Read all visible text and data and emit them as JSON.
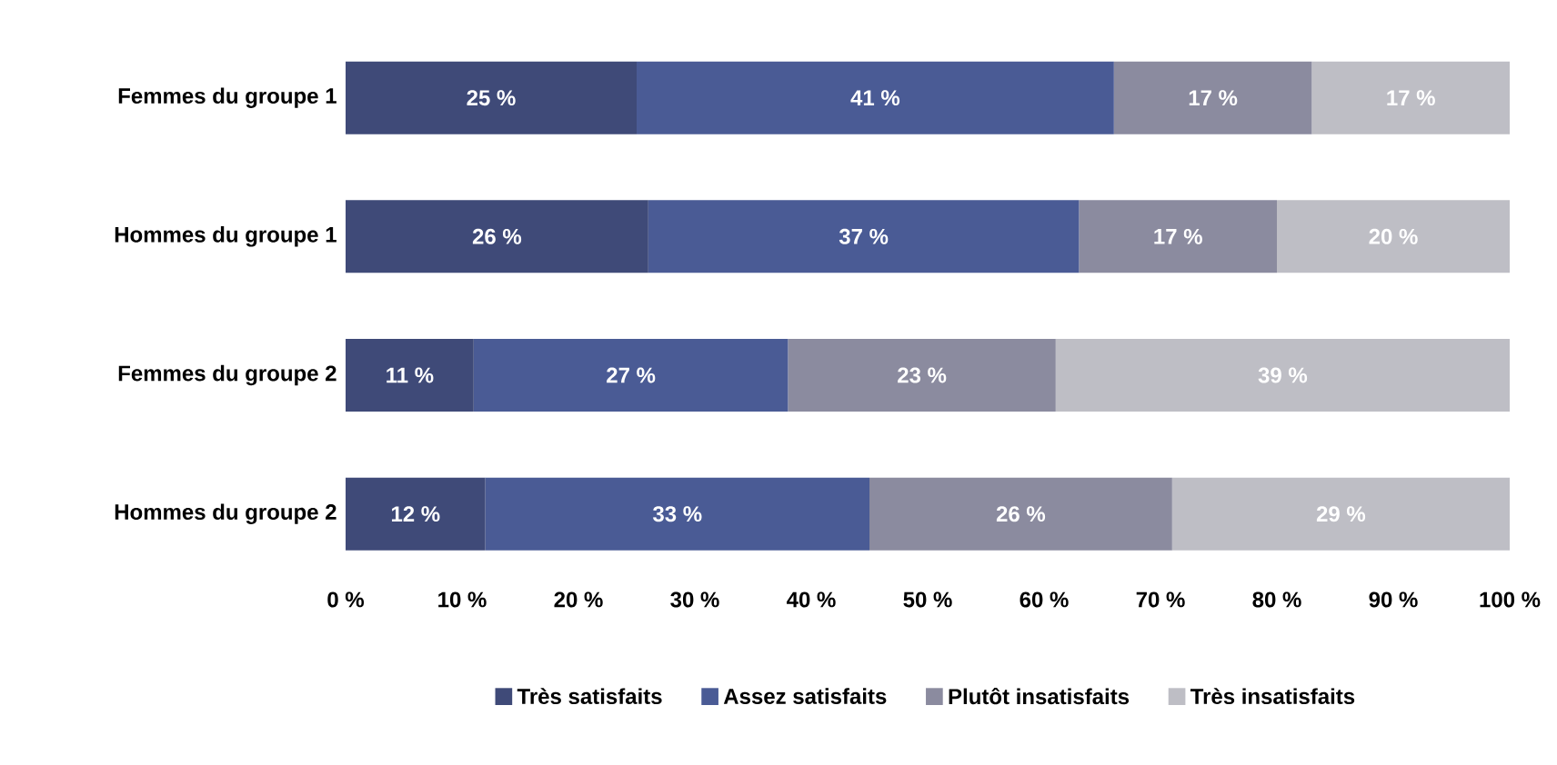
{
  "chart_data": {
    "type": "bar",
    "orientation": "horizontal",
    "stacked": true,
    "categories": [
      "Femmes du groupe 1",
      "Hommes du groupe 1",
      "Femmes du groupe 2",
      "Hommes du groupe 2"
    ],
    "series": [
      {
        "name": "Très satisfaits",
        "color": "#3f4a78",
        "values": [
          25,
          26,
          11,
          12
        ],
        "value_labels": [
          "25 %",
          "26 %",
          "11 %",
          "12 %"
        ]
      },
      {
        "name": "Assez satisfaits",
        "color": "#4a5b95",
        "values": [
          41,
          37,
          27,
          33
        ],
        "value_labels": [
          "41 %",
          "37 %",
          "27 %",
          "33 %"
        ]
      },
      {
        "name": "Plutôt insatisfaits",
        "color": "#8b8b9f",
        "values": [
          17,
          17,
          23,
          26
        ],
        "value_labels": [
          "17 %",
          "17 %",
          "23 %",
          "26 %"
        ]
      },
      {
        "name": "Très insatisfaits",
        "color": "#bebec5",
        "values": [
          17,
          20,
          39,
          29
        ],
        "value_labels": [
          "17 %",
          "20 %",
          "39 %",
          "29 %"
        ]
      }
    ],
    "xlim": [
      0,
      100
    ],
    "xticks": [
      {
        "value": 0,
        "label": "0 %"
      },
      {
        "value": 10,
        "label": "10 %"
      },
      {
        "value": 20,
        "label": "20 %"
      },
      {
        "value": 30,
        "label": "30 %"
      },
      {
        "value": 40,
        "label": "40 %"
      },
      {
        "value": 50,
        "label": "50 %"
      },
      {
        "value": 60,
        "label": "60 %"
      },
      {
        "value": 70,
        "label": "70 %"
      },
      {
        "value": 80,
        "label": "80 %"
      },
      {
        "value": 90,
        "label": "90 %"
      },
      {
        "value": 100,
        "label": "100 %"
      }
    ],
    "legend": "bottom"
  }
}
